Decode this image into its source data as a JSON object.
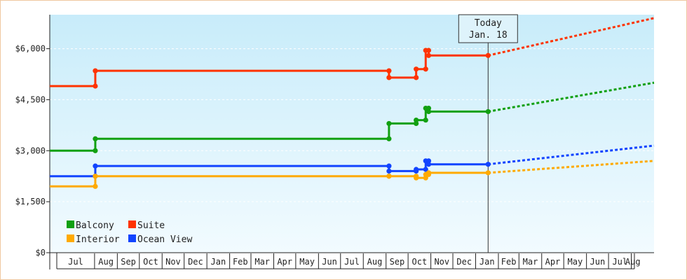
{
  "chart_data": {
    "type": "line",
    "title": "",
    "xlabel": "",
    "ylabel": "",
    "ylim": [
      0,
      7000
    ],
    "yticks": [
      0,
      1500,
      3000,
      4500,
      6000
    ],
    "ytick_labels": [
      "$0",
      "$1,500",
      "$3,000",
      "$4,500",
      "$6,000"
    ],
    "xlim": [
      "2019-06-01",
      "2021-09-01"
    ],
    "month_labels": [
      {
        "label": "Jul",
        "date": "2019-07-01"
      },
      {
        "label": "Aug",
        "date": "2019-08-01"
      },
      {
        "label": "Sep",
        "date": "2019-09-01"
      },
      {
        "label": "Oct",
        "date": "2019-10-01"
      },
      {
        "label": "Nov",
        "date": "2019-11-01"
      },
      {
        "label": "Dec",
        "date": "2019-12-01"
      },
      {
        "label": "Jan",
        "date": "2020-01-01"
      },
      {
        "label": "Feb",
        "date": "2020-02-01"
      },
      {
        "label": "Mar",
        "date": "2020-03-01"
      },
      {
        "label": "Apr",
        "date": "2020-04-01"
      },
      {
        "label": "May",
        "date": "2020-05-01"
      },
      {
        "label": "Jun",
        "date": "2020-06-01"
      },
      {
        "label": "Jul",
        "date": "2020-07-01"
      },
      {
        "label": "Aug",
        "date": "2020-08-01"
      },
      {
        "label": "Sep",
        "date": "2020-09-01"
      },
      {
        "label": "Oct",
        "date": "2020-10-01"
      },
      {
        "label": "Nov",
        "date": "2020-11-01"
      },
      {
        "label": "Dec",
        "date": "2020-12-01"
      },
      {
        "label": "Jan",
        "date": "2021-01-01"
      },
      {
        "label": "Feb",
        "date": "2021-02-01"
      },
      {
        "label": "Mar",
        "date": "2021-03-01"
      },
      {
        "label": "Apr",
        "date": "2021-04-01"
      },
      {
        "label": "May",
        "date": "2021-05-01"
      },
      {
        "label": "Jun",
        "date": "2021-06-01"
      },
      {
        "label": "Jul",
        "date": "2021-07-01"
      },
      {
        "label": "Aug",
        "date": "2021-08-01"
      }
    ],
    "today": {
      "line1": "Today",
      "line2": "Jan. 18",
      "date": "2021-01-18"
    },
    "legend": {
      "placement": "bottom-left"
    },
    "series": [
      {
        "name": "Suite",
        "color": "#ff3300",
        "points": [
          {
            "x": "2019-06-01",
            "y": 4900
          },
          {
            "x": "2019-08-02",
            "y": 4900
          },
          {
            "x": "2019-08-02",
            "y": 5350
          },
          {
            "x": "2020-09-05",
            "y": 5350
          },
          {
            "x": "2020-09-05",
            "y": 5150
          },
          {
            "x": "2020-10-12",
            "y": 5150
          },
          {
            "x": "2020-10-12",
            "y": 5400
          },
          {
            "x": "2020-10-25",
            "y": 5400
          },
          {
            "x": "2020-10-25",
            "y": 5950
          },
          {
            "x": "2020-10-29",
            "y": 5950
          },
          {
            "x": "2020-10-29",
            "y": 5800
          },
          {
            "x": "2021-01-18",
            "y": 5800
          }
        ],
        "forecast": [
          {
            "x": "2021-01-18",
            "y": 5800
          },
          {
            "x": "2021-09-01",
            "y": 6900
          }
        ]
      },
      {
        "name": "Balcony",
        "color": "#11a011",
        "points": [
          {
            "x": "2019-06-01",
            "y": 3000
          },
          {
            "x": "2019-08-02",
            "y": 3000
          },
          {
            "x": "2019-08-02",
            "y": 3350
          },
          {
            "x": "2020-09-05",
            "y": 3350
          },
          {
            "x": "2020-09-05",
            "y": 3800
          },
          {
            "x": "2020-10-12",
            "y": 3800
          },
          {
            "x": "2020-10-12",
            "y": 3900
          },
          {
            "x": "2020-10-25",
            "y": 3900
          },
          {
            "x": "2020-10-25",
            "y": 4250
          },
          {
            "x": "2020-10-29",
            "y": 4250
          },
          {
            "x": "2020-10-29",
            "y": 4150
          },
          {
            "x": "2021-01-18",
            "y": 4150
          }
        ],
        "forecast": [
          {
            "x": "2021-01-18",
            "y": 4150
          },
          {
            "x": "2021-09-01",
            "y": 5000
          }
        ]
      },
      {
        "name": "Ocean View",
        "color": "#1144ff",
        "points": [
          {
            "x": "2019-06-01",
            "y": 2250
          },
          {
            "x": "2019-08-02",
            "y": 2250
          },
          {
            "x": "2019-08-02",
            "y": 2550
          },
          {
            "x": "2020-09-05",
            "y": 2550
          },
          {
            "x": "2020-09-05",
            "y": 2400
          },
          {
            "x": "2020-10-12",
            "y": 2400
          },
          {
            "x": "2020-10-12",
            "y": 2450
          },
          {
            "x": "2020-10-25",
            "y": 2450
          },
          {
            "x": "2020-10-25",
            "y": 2700
          },
          {
            "x": "2020-10-29",
            "y": 2700
          },
          {
            "x": "2020-10-29",
            "y": 2600
          },
          {
            "x": "2021-01-18",
            "y": 2600
          }
        ],
        "forecast": [
          {
            "x": "2021-01-18",
            "y": 2600
          },
          {
            "x": "2021-09-01",
            "y": 3150
          }
        ]
      },
      {
        "name": "Interior",
        "color": "#ffaa00",
        "points": [
          {
            "x": "2019-06-01",
            "y": 1950
          },
          {
            "x": "2019-08-02",
            "y": 1950
          },
          {
            "x": "2019-08-02",
            "y": 2250
          },
          {
            "x": "2020-09-05",
            "y": 2250
          },
          {
            "x": "2020-09-05",
            "y": 2250
          },
          {
            "x": "2020-10-12",
            "y": 2250
          },
          {
            "x": "2020-10-12",
            "y": 2200
          },
          {
            "x": "2020-10-25",
            "y": 2200
          },
          {
            "x": "2020-10-25",
            "y": 2300
          },
          {
            "x": "2020-10-29",
            "y": 2300
          },
          {
            "x": "2020-10-29",
            "y": 2350
          },
          {
            "x": "2021-01-18",
            "y": 2350
          }
        ],
        "forecast": [
          {
            "x": "2021-01-18",
            "y": 2350
          },
          {
            "x": "2021-09-01",
            "y": 2700
          }
        ]
      }
    ],
    "legend_order": [
      "Balcony",
      "Suite",
      "Interior",
      "Ocean View"
    ],
    "background_gradient": [
      "#c8ecfa",
      "#f2fbff"
    ]
  }
}
